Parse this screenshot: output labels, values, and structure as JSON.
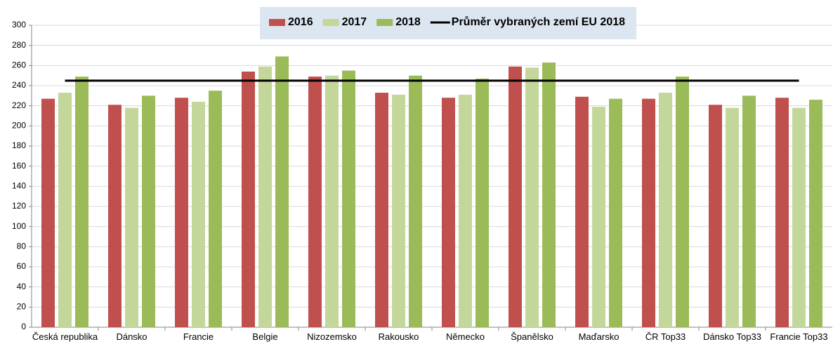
{
  "chart_data": {
    "type": "bar",
    "categories": [
      "Česká republika",
      "Dánsko",
      "Francie",
      "Belgie",
      "Nizozemsko",
      "Rakousko",
      "Německo",
      "Španělsko",
      "Maďarsko",
      "ČR Top33",
      "Dánsko Top33",
      "Francie Top33"
    ],
    "series": [
      {
        "name": "2016",
        "color": "#c0504d",
        "values": [
          227,
          221,
          228,
          254,
          249,
          233,
          228,
          259,
          229,
          227,
          221,
          228
        ]
      },
      {
        "name": "2017",
        "color": "#c4d79b",
        "values": [
          233,
          218,
          224,
          259,
          250,
          231,
          231,
          258,
          219,
          233,
          218,
          218
        ]
      },
      {
        "name": "2018",
        "color": "#9bbb59",
        "values": [
          249,
          230,
          235,
          269,
          255,
          250,
          247,
          263,
          227,
          249,
          230,
          226
        ]
      },
      {
        "name": "Průměr vybraných zemí EU 2018",
        "type": "line",
        "color": "#000000",
        "values": [
          245,
          245,
          245,
          245,
          245,
          245,
          245,
          245,
          245,
          245,
          245,
          245
        ]
      }
    ],
    "ylim": [
      0,
      300
    ],
    "yticks": [
      0,
      20,
      40,
      60,
      80,
      100,
      120,
      140,
      160,
      180,
      200,
      220,
      240,
      260,
      280,
      300
    ],
    "grid": true,
    "legend": "top"
  }
}
